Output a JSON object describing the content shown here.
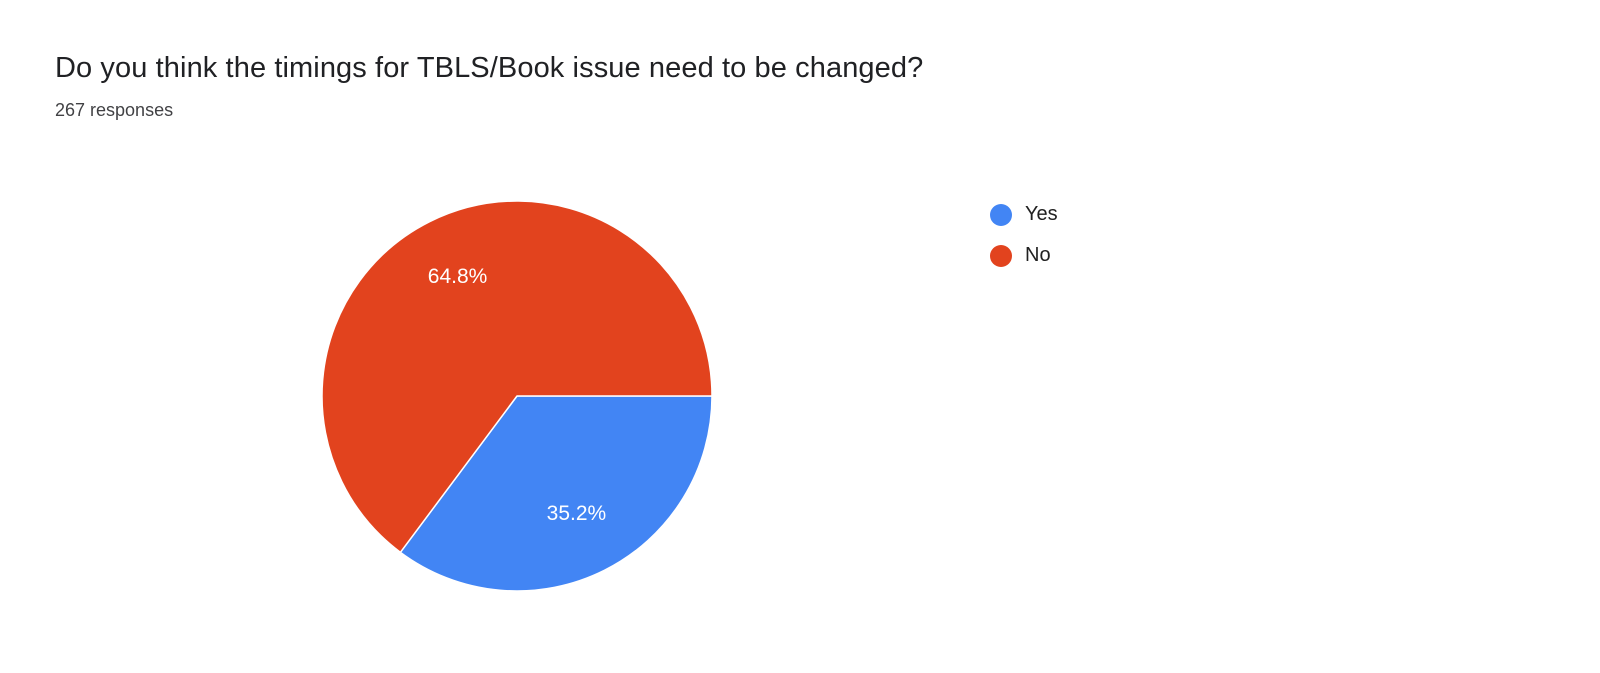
{
  "header": {
    "title": "Do you think the timings for TBLS/Book issue need to be changed?",
    "responses": "267 responses"
  },
  "chart_data": {
    "type": "pie",
    "title": "Do you think the timings for TBLS/Book issue need to be changed?",
    "subtitle": "267 responses",
    "labels": [
      "Yes",
      "No"
    ],
    "values": [
      35.2,
      64.8
    ],
    "value_labels": [
      "35.2%",
      "64.8%"
    ],
    "colors": [
      "#4285f4",
      "#e2431e"
    ],
    "label_text_color": "#ffffff",
    "slice_border_color": "#ffffff",
    "start_angle_deg": 90,
    "direction": "clockwise",
    "legend_position": "right"
  },
  "legend": {
    "items": [
      {
        "label": "Yes",
        "color": "#4285f4"
      },
      {
        "label": "No",
        "color": "#e2431e"
      }
    ]
  }
}
